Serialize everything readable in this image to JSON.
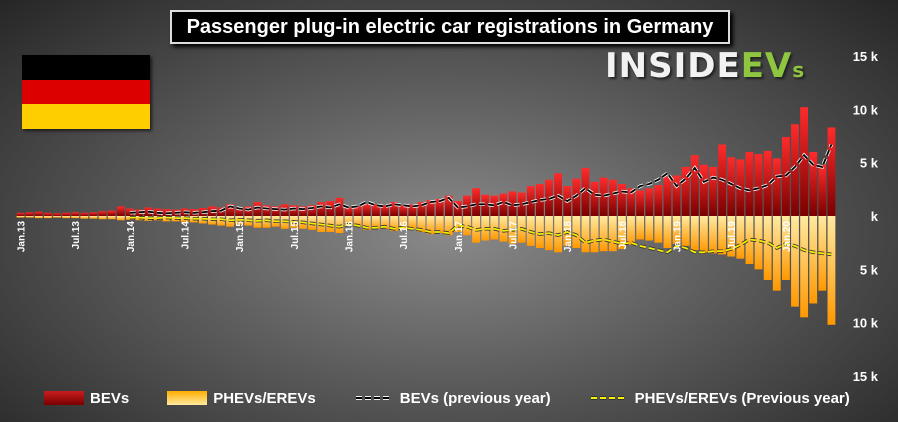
{
  "header": {
    "title": "Passenger plug-in electric car registrations in Germany"
  },
  "logo": {
    "main": "INSIDE",
    "ev": "EV",
    "s": "s"
  },
  "flag_colors": [
    "#000000",
    "#dd0000",
    "#ffce00"
  ],
  "colors": {
    "bev": "#c91d1d",
    "phev": "#ffae00",
    "bev_prev": "#000000",
    "phev_prev": "#f4f000"
  },
  "legend": {
    "bev": "BEVs",
    "phev": "PHEVs/EREVs",
    "bev_prev": "BEVs (previous year)",
    "phev_prev": "PHEVs/EREVs (Previous year)"
  },
  "chart_data": {
    "type": "bar",
    "title": "Passenger plug-in electric car registrations in Germany",
    "ylim": [
      -15000,
      15000
    ],
    "y_ticks": [
      {
        "v": 15000,
        "label": "15 k"
      },
      {
        "v": 10000,
        "label": "10 k"
      },
      {
        "v": 5000,
        "label": "5 k"
      },
      {
        "v": 0,
        "label": "k"
      },
      {
        "v": -5000,
        "label": "5 k"
      },
      {
        "v": -10000,
        "label": "10 k"
      },
      {
        "v": -15000,
        "label": "15 k"
      }
    ],
    "x_tick_labels": [
      "Jan.13",
      "Jul.13",
      "Jan.14",
      "Jul.14",
      "Jan.15",
      "Jul.15",
      "Jan.16",
      "Jul.16",
      "Jan.17",
      "Jul.17",
      "Jan.18",
      "Jul.18",
      "Jan.19",
      "Jul.19",
      "Jan.20"
    ],
    "x_tick_every": 6,
    "categories": [
      "Jan.13",
      "Feb.13",
      "Mar.13",
      "Apr.13",
      "May.13",
      "Jun.13",
      "Jul.13",
      "Aug.13",
      "Sep.13",
      "Oct.13",
      "Nov.13",
      "Dec.13",
      "Jan.14",
      "Feb.14",
      "Mar.14",
      "Apr.14",
      "May.14",
      "Jun.14",
      "Jul.14",
      "Aug.14",
      "Sep.14",
      "Oct.14",
      "Nov.14",
      "Dec.14",
      "Jan.15",
      "Feb.15",
      "Mar.15",
      "Apr.15",
      "May.15",
      "Jun.15",
      "Jul.15",
      "Aug.15",
      "Sep.15",
      "Oct.15",
      "Nov.15",
      "Dec.15",
      "Jan.16",
      "Feb.16",
      "Mar.16",
      "Apr.16",
      "May.16",
      "Jun.16",
      "Jul.16",
      "Aug.16",
      "Sep.16",
      "Oct.16",
      "Nov.16",
      "Dec.16",
      "Jan.17",
      "Feb.17",
      "Mar.17",
      "Apr.17",
      "May.17",
      "Jun.17",
      "Jul.17",
      "Aug.17",
      "Sep.17",
      "Oct.17",
      "Nov.17",
      "Dec.17",
      "Jan.18",
      "Feb.18",
      "Mar.18",
      "Apr.18",
      "May.18",
      "Jun.18",
      "Jul.18",
      "Aug.18",
      "Sep.18",
      "Oct.18",
      "Nov.18",
      "Dec.18",
      "Jan.19",
      "Feb.19",
      "Mar.19",
      "Apr.19",
      "May.19",
      "Jun.19",
      "Jul.19",
      "Aug.19",
      "Sep.19",
      "Oct.19",
      "Nov.19",
      "Dec.19",
      "Jan.20",
      "Feb.20",
      "Mar.20",
      "Apr.20",
      "May.20",
      "Jun.20"
    ],
    "series": [
      {
        "name": "BEVs",
        "values": [
          300,
          350,
          400,
          300,
          250,
          300,
          350,
          300,
          350,
          450,
          500,
          900,
          700,
          600,
          800,
          700,
          650,
          600,
          700,
          650,
          750,
          900,
          800,
          1100,
          800,
          900,
          1300,
          1000,
          900,
          1100,
          1000,
          900,
          1000,
          1300,
          1400,
          1700,
          800,
          900,
          1100,
          1100,
          1000,
          1300,
          1000,
          1100,
          1300,
          1500,
          1600,
          1900,
          1400,
          1900,
          2600,
          2000,
          1900,
          2100,
          2300,
          2200,
          2800,
          3000,
          3400,
          4000,
          2800,
          3500,
          4500,
          3200,
          3600,
          3400,
          3000,
          2600,
          2400,
          2600,
          2900,
          3700,
          3800,
          4600,
          5700,
          4800,
          4600,
          6700,
          5500,
          5300,
          6000,
          5800,
          6100,
          5400,
          7400,
          8600,
          10200,
          6000,
          4800,
          8300
        ]
      },
      {
        "name": "PHEVs/EREVs",
        "values": [
          -150,
          -150,
          -200,
          -200,
          -150,
          -200,
          -200,
          -250,
          -250,
          -300,
          -300,
          -400,
          -350,
          -400,
          -450,
          -400,
          -500,
          -500,
          -550,
          -600,
          -700,
          -800,
          -900,
          -1000,
          -800,
          -900,
          -1100,
          -1100,
          -1000,
          -1200,
          -1100,
          -1200,
          -1300,
          -1500,
          -1500,
          -1600,
          -900,
          -1000,
          -1300,
          -1200,
          -1200,
          -1400,
          -1300,
          -1200,
          -1500,
          -1700,
          -1600,
          -1800,
          -1500,
          -1800,
          -2500,
          -2300,
          -2200,
          -2400,
          -2600,
          -2500,
          -2800,
          -3000,
          -3200,
          -3400,
          -2800,
          -3000,
          -3400,
          -3400,
          -3300,
          -3300,
          -3100,
          -2700,
          -2200,
          -2300,
          -2500,
          -3000,
          -2600,
          -2800,
          -3200,
          -3400,
          -3500,
          -3600,
          -3800,
          -4000,
          -4500,
          -5000,
          -6000,
          -7000,
          -6000,
          -8500,
          -9500,
          -8200,
          -7000,
          -10200
        ]
      },
      {
        "name": "BEVs (previous year)",
        "values": [
          null,
          null,
          null,
          null,
          null,
          null,
          null,
          null,
          null,
          null,
          null,
          null,
          300,
          350,
          400,
          300,
          250,
          300,
          350,
          300,
          350,
          450,
          500,
          900,
          700,
          600,
          800,
          700,
          650,
          600,
          700,
          650,
          750,
          900,
          800,
          1100,
          800,
          900,
          1300,
          1000,
          900,
          1100,
          1000,
          900,
          1000,
          1300,
          1400,
          1700,
          800,
          900,
          1100,
          1100,
          1000,
          1300,
          1000,
          1100,
          1300,
          1500,
          1600,
          1900,
          1400,
          1900,
          2600,
          2000,
          1900,
          2100,
          2300,
          2200,
          2800,
          3000,
          3400,
          4000,
          2800,
          3500,
          4500,
          3200,
          3600,
          3400,
          3000,
          2600,
          2400,
          2600,
          2900,
          3700,
          3800,
          4600,
          5700,
          4800,
          4600,
          6700
        ]
      },
      {
        "name": "PHEVs/EREVs (Previous year)",
        "values": [
          null,
          null,
          null,
          null,
          null,
          null,
          null,
          null,
          null,
          null,
          null,
          null,
          -150,
          -150,
          -200,
          -200,
          -150,
          -200,
          -200,
          -250,
          -250,
          -300,
          -300,
          -400,
          -350,
          -400,
          -450,
          -400,
          -500,
          -500,
          -550,
          -600,
          -700,
          -800,
          -900,
          -1000,
          -800,
          -900,
          -1100,
          -1100,
          -1000,
          -1200,
          -1100,
          -1200,
          -1300,
          -1500,
          -1500,
          -1600,
          -900,
          -1000,
          -1300,
          -1200,
          -1200,
          -1400,
          -1300,
          -1200,
          -1500,
          -1700,
          -1600,
          -1800,
          -1500,
          -1800,
          -2500,
          -2300,
          -2200,
          -2400,
          -2600,
          -2500,
          -2800,
          -3000,
          -3200,
          -3400,
          -2800,
          -3000,
          -3400,
          -3400,
          -3300,
          -3300,
          -3100,
          -2700,
          -2200,
          -2300,
          -2500,
          -3000,
          -2600,
          -2800,
          -3200,
          -3400,
          -3500,
          -3600
        ]
      }
    ]
  }
}
